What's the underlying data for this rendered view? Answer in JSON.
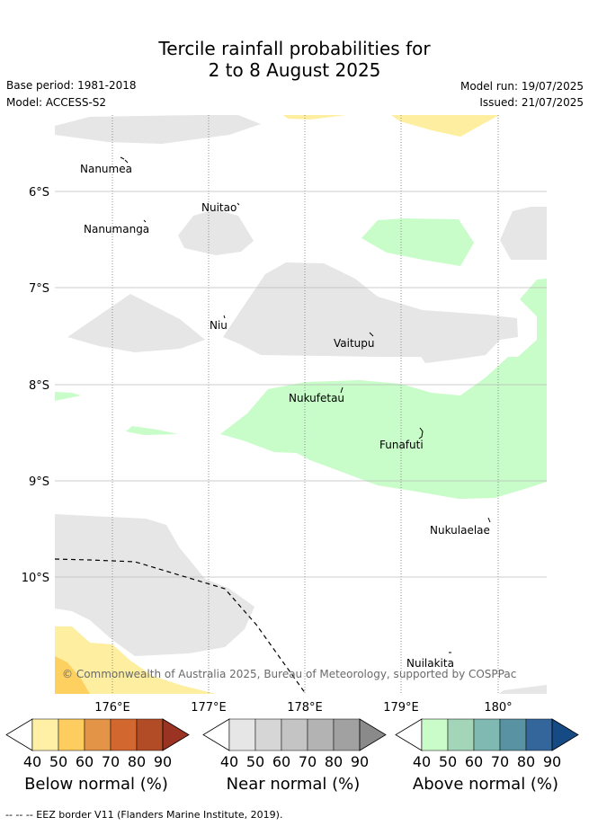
{
  "title_line1": "Tercile rainfall probabilities for",
  "title_line2": "2 to 8 August 2025",
  "base_period": "Base period: 1981-2018",
  "model": "Model: ACCESS-S2",
  "model_run": "Model run: 19/07/2025",
  "issued": "Issued: 21/07/2025",
  "map": {
    "lon_ticks": [
      "176°E",
      "177°E",
      "178°E",
      "179°E",
      "180°"
    ],
    "lat_ticks": [
      "6°S",
      "7°S",
      "8°S",
      "9°S",
      "10°S"
    ],
    "places": [
      "Nanumea",
      "Nuitao",
      "Nanumanga",
      "Niu",
      "Vaitupu",
      "Nukufetau",
      "Funafuti",
      "Nukulaelae",
      "Nuilakita"
    ],
    "copyright": "© Commonwealth of Australia 2025, Bureau of Meteorology, supported by COSPPac",
    "categories": {
      "below": "#fdeea0",
      "below_dark": "#fdd060",
      "near": "#e6e6e6",
      "above": "#c8fcc8"
    }
  },
  "colorbars": [
    {
      "label": "Below normal (%)",
      "ticks": [
        "40",
        "50",
        "60",
        "70",
        "80",
        "90"
      ],
      "colors": [
        "#ffffff",
        "#fff0a6",
        "#fdcd60",
        "#e39447",
        "#d2672f",
        "#b24c27",
        "#9b3322"
      ]
    },
    {
      "label": "Near normal (%)",
      "ticks": [
        "40",
        "50",
        "60",
        "70",
        "80",
        "90"
      ],
      "colors": [
        "#ffffff",
        "#e6e6e6",
        "#d6d6d6",
        "#c4c4c4",
        "#b3b3b3",
        "#a1a1a1",
        "#8a8a8a"
      ]
    },
    {
      "label": "Above normal (%)",
      "ticks": [
        "40",
        "50",
        "60",
        "70",
        "80",
        "90"
      ],
      "colors": [
        "#ffffff",
        "#c9fcc9",
        "#a3d6b8",
        "#7fb9b1",
        "#5993a3",
        "#34669c",
        "#154a84"
      ]
    }
  ],
  "eez_legend": "-- -- -- EEZ border V11 (Flanders Marine Institute, 2019)."
}
